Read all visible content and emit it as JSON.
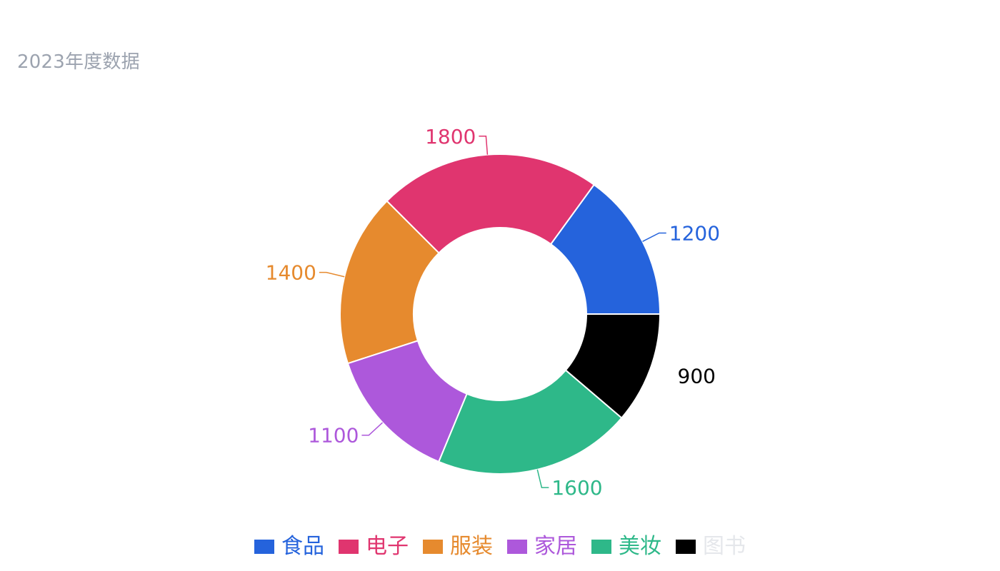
{
  "chart_data": {
    "type": "pie",
    "variant": "donut",
    "title": "2023年度数据",
    "categories": [
      "食品",
      "电子",
      "服装",
      "家居",
      "美妆",
      "图书"
    ],
    "values": [
      1200,
      1800,
      1400,
      1100,
      1600,
      900
    ],
    "colors": [
      "#2563dc",
      "#e0356f",
      "#e68a2e",
      "#ad58db",
      "#2eb889",
      "#000000"
    ],
    "legend_position": "bottom-center",
    "legend_disabled": [
      false,
      false,
      false,
      false,
      false,
      true
    ],
    "legend_disabled_color": "#e5e7eb",
    "label_color_for_black_slice": "#000000"
  }
}
